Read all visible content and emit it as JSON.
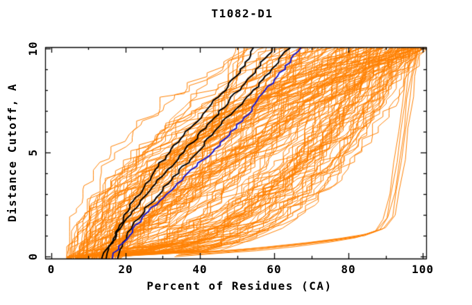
{
  "title": "T1082-D1",
  "colors": {
    "background": "#ffffff",
    "frame": "#000000",
    "orange": "#ff8000",
    "black": "#000000",
    "blue": "#1a1acc"
  },
  "chart_data": {
    "type": "line",
    "title": "T1082-D1",
    "xlabel": "Percent of Residues (CA)",
    "ylabel": "Distance Cutoff, A",
    "xlim": [
      0,
      100
    ],
    "ylim": [
      0,
      10
    ],
    "grid": false,
    "legend": "none",
    "axes": {
      "x": {
        "min": -1.68,
        "max": 100.93,
        "major_ticks": [
          0,
          20,
          40,
          60,
          80,
          100
        ],
        "minor_ticks": [
          10,
          30,
          50,
          70,
          90
        ]
      },
      "y": {
        "min": -0.1,
        "max": 10.06,
        "major_ticks": [
          0,
          5,
          10
        ],
        "minor_ticks": [
          1,
          2,
          3,
          4,
          6,
          7,
          8,
          9
        ]
      }
    },
    "series": [
      {
        "name": "black-1",
        "color": "#000000",
        "width": 2,
        "points": [
          [
            0,
            13.3
          ],
          [
            0.5,
            15.5
          ],
          [
            1,
            17.5
          ],
          [
            1.5,
            19
          ],
          [
            2,
            21
          ],
          [
            2.5,
            23.5
          ],
          [
            3,
            26
          ],
          [
            3.5,
            28
          ],
          [
            4,
            30.5
          ],
          [
            4.5,
            33
          ],
          [
            5,
            35.5
          ],
          [
            5.5,
            38
          ],
          [
            6,
            40.5
          ],
          [
            6.5,
            43
          ],
          [
            7,
            45.5
          ],
          [
            7.5,
            48
          ],
          [
            8,
            50.5
          ],
          [
            8.5,
            53
          ],
          [
            9,
            55.5
          ],
          [
            9.5,
            57.5
          ],
          [
            10,
            59.5
          ]
        ]
      },
      {
        "name": "black-2",
        "color": "#000000",
        "width": 2,
        "points": [
          [
            0,
            14.6
          ],
          [
            0.5,
            16
          ],
          [
            1,
            17
          ],
          [
            1.5,
            18.5
          ],
          [
            2,
            20
          ],
          [
            2.5,
            21.5
          ],
          [
            3,
            23.5
          ],
          [
            3.5,
            25.5
          ],
          [
            4,
            27.5
          ],
          [
            4.5,
            29.5
          ],
          [
            5,
            32
          ],
          [
            5.5,
            34
          ],
          [
            6,
            36.5
          ],
          [
            6.5,
            39
          ],
          [
            7,
            41.5
          ],
          [
            7.5,
            44
          ],
          [
            8,
            46.5
          ],
          [
            8.5,
            49
          ],
          [
            9,
            51
          ],
          [
            9.5,
            53
          ],
          [
            10,
            54.5
          ]
        ]
      },
      {
        "name": "black-3",
        "color": "#000000",
        "width": 2,
        "points": [
          [
            0,
            17.6
          ],
          [
            0.5,
            19
          ],
          [
            1,
            20.5
          ],
          [
            1.5,
            22
          ],
          [
            2,
            24
          ],
          [
            2.5,
            26.5
          ],
          [
            3,
            29
          ],
          [
            3.5,
            31.5
          ],
          [
            4,
            34
          ],
          [
            4.5,
            36.5
          ],
          [
            5,
            39
          ],
          [
            5.5,
            41.5
          ],
          [
            6,
            44
          ],
          [
            6.5,
            46.5
          ],
          [
            7,
            49.5
          ],
          [
            7.5,
            52
          ],
          [
            8,
            54.5
          ],
          [
            8.5,
            57
          ],
          [
            9,
            59.5
          ],
          [
            9.5,
            61.8
          ],
          [
            10,
            63.8
          ]
        ]
      },
      {
        "name": "blue",
        "color": "#1a1acc",
        "width": 2,
        "points": [
          [
            0,
            16.3
          ],
          [
            0.5,
            18.5
          ],
          [
            1,
            20.8
          ],
          [
            1.5,
            23
          ],
          [
            2,
            25.5
          ],
          [
            2.5,
            28
          ],
          [
            3,
            31
          ],
          [
            3.5,
            34
          ],
          [
            4,
            37
          ],
          [
            4.5,
            40
          ],
          [
            5,
            43
          ],
          [
            5.5,
            46
          ],
          [
            6,
            48.5
          ],
          [
            6.5,
            51
          ],
          [
            7,
            53.5
          ],
          [
            7.5,
            55.5
          ],
          [
            8,
            58
          ],
          [
            8.5,
            60
          ],
          [
            9,
            62.5
          ],
          [
            9.5,
            64.8
          ],
          [
            10,
            67.2
          ]
        ]
      }
    ],
    "outlier_series": {
      "count": 5,
      "color": "#ff8000",
      "width": 1,
      "x_offset_step": 0.7,
      "base_points": [
        [
          0,
          33
        ],
        [
          0.15,
          45
        ],
        [
          0.3,
          55
        ],
        [
          0.5,
          66
        ],
        [
          0.7,
          75
        ],
        [
          0.9,
          82
        ],
        [
          1.2,
          87
        ],
        [
          1.8,
          89.5
        ],
        [
          3,
          91
        ],
        [
          4.5,
          92.3
        ],
        [
          6,
          93.4
        ],
        [
          7.5,
          94.5
        ],
        [
          8.5,
          95.3
        ],
        [
          9.2,
          96
        ],
        [
          10,
          96.8
        ]
      ]
    },
    "orange_ensemble": {
      "count": 150,
      "seed": 7,
      "color": "#ff8000",
      "width": 1,
      "start_percent_range": [
        4,
        18
      ],
      "final_percent_range": [
        45,
        101
      ],
      "gamma_range": [
        0.25,
        2.3
      ],
      "plateau_probability": 0.22,
      "noise_percent": 3
    }
  }
}
